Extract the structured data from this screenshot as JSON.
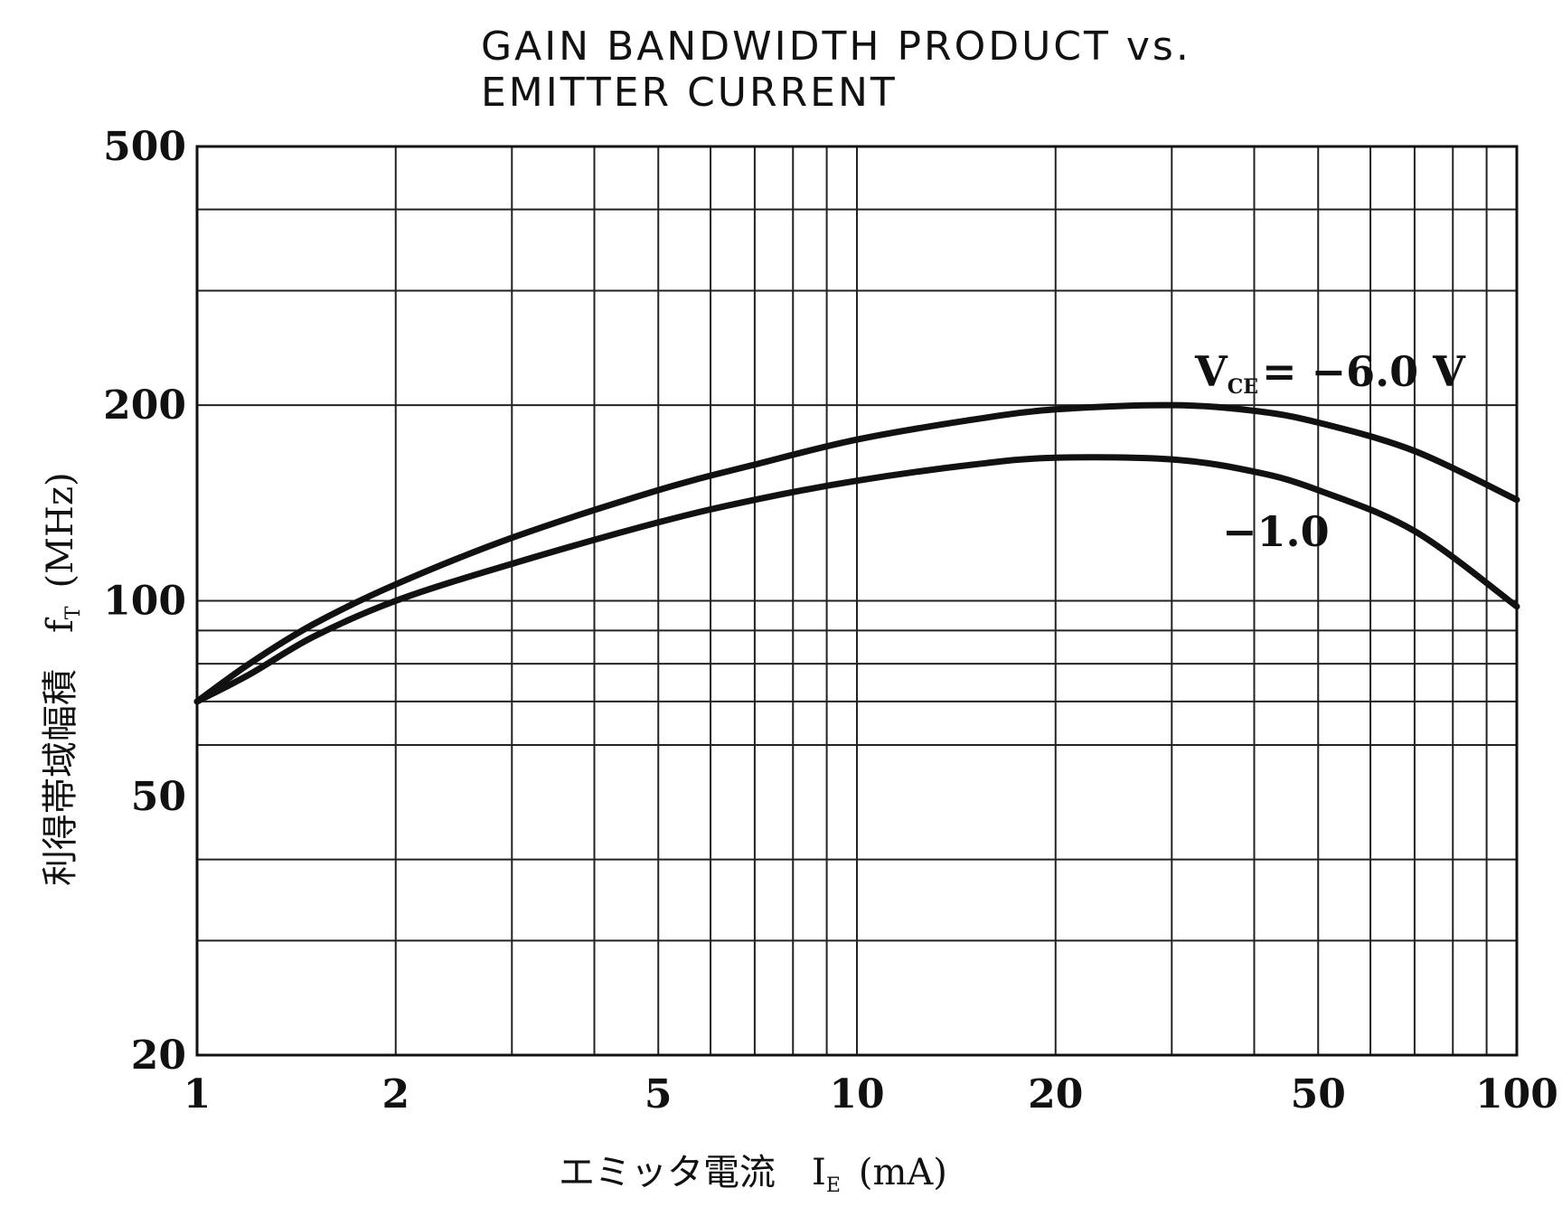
{
  "chart_data": {
    "type": "line",
    "title_lines": [
      "GAIN  BANDWIDTH  PRODUCT  vs.",
      "EMITTER  CURRENT"
    ],
    "xlabel": "エミッタ電流　I",
    "xlabel_sub": "E",
    "xlabel_unit": "(mA)",
    "ylabel": "利得帯域幅積　f",
    "ylabel_sub": "T",
    "ylabel_unit": "(MHz)",
    "x_scale": "log",
    "y_scale": "log",
    "xlim": [
      1,
      100
    ],
    "ylim": [
      20,
      500
    ],
    "x_ticks": [
      1,
      2,
      5,
      10,
      20,
      50,
      100
    ],
    "y_ticks": [
      20,
      50,
      100,
      200,
      500
    ],
    "grid": true,
    "annotation_vce_prefix": "V",
    "annotation_vce_sub": "CE",
    "annotation_vce_value": "= −6.0 V",
    "series": [
      {
        "label": "V_CE = −6.0 V",
        "x": [
          1,
          1.2,
          1.5,
          2,
          3,
          5,
          7,
          10,
          15,
          20,
          30,
          40,
          50,
          70,
          100
        ],
        "y": [
          70,
          80,
          92,
          106,
          125,
          148,
          162,
          177,
          190,
          197,
          200,
          196,
          188,
          170,
          143
        ]
      },
      {
        "label": "−1.0",
        "x": [
          1,
          1.2,
          1.5,
          2,
          3,
          5,
          7,
          10,
          15,
          20,
          30,
          40,
          50,
          70,
          100
        ],
        "y": [
          70,
          77,
          88,
          100,
          114,
          132,
          143,
          153,
          162,
          166,
          165,
          158,
          148,
          128,
          98
        ]
      }
    ]
  }
}
